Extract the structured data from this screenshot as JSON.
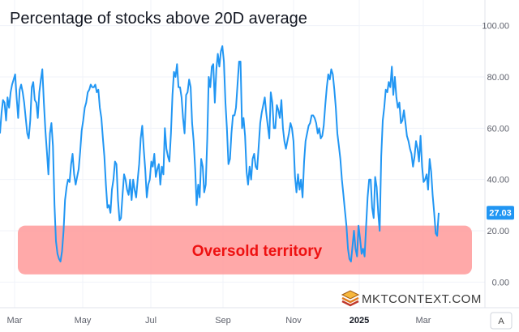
{
  "chart_data": {
    "type": "line",
    "title": "Percentage of stocks above 20D average",
    "ylim": [
      -10,
      110
    ],
    "y_ticks": [
      "100.00",
      "80.00",
      "60.00",
      "40.00",
      "20.00",
      "0.00"
    ],
    "x_tick_labels": [
      "Mar",
      "May",
      "Jul",
      "Sep",
      "Nov",
      "2025",
      "Mar"
    ],
    "last_value_label": "27.03",
    "band": {
      "from": 3,
      "to": 22,
      "label": "Oversold territory",
      "color": "#ff9a9a"
    },
    "series": [
      {
        "color": "#2196f3",
        "values": [
          58,
          66,
          71,
          70,
          63,
          72,
          68,
          74,
          77,
          79,
          81,
          72,
          64,
          75,
          77,
          74,
          70,
          64,
          58,
          56,
          63,
          76,
          78,
          71,
          70,
          64,
          74,
          79,
          83,
          70,
          59,
          51,
          42,
          58,
          62,
          53,
          30,
          16,
          11,
          9,
          8,
          12,
          20,
          32,
          37,
          40,
          39,
          46,
          50,
          42,
          38,
          41,
          44,
          51,
          59,
          63,
          68,
          70,
          74,
          75,
          77,
          76,
          76,
          77,
          74,
          75,
          68,
          64,
          56,
          49,
          38,
          29,
          30,
          27,
          36,
          40,
          47,
          46,
          32,
          24,
          25,
          34,
          42,
          40,
          36,
          34,
          40,
          32,
          40,
          36,
          33,
          40,
          46,
          56,
          61,
          52,
          44,
          33,
          38,
          40,
          47,
          45,
          50,
          41,
          44,
          46,
          38,
          45,
          42,
          60,
          52,
          49,
          47,
          58,
          73,
          82,
          80,
          85,
          76,
          76,
          72,
          64,
          58,
          73,
          74,
          79,
          76,
          62,
          55,
          44,
          30,
          38,
          33,
          48,
          45,
          35,
          38,
          56,
          80,
          76,
          84,
          85,
          70,
          83,
          89,
          84,
          90,
          92,
          86,
          70,
          60,
          46,
          48,
          58,
          65,
          65,
          68,
          77,
          86,
          86,
          60,
          64,
          57,
          43,
          38,
          45,
          40,
          48,
          50,
          45,
          44,
          53,
          62,
          66,
          69,
          72,
          66,
          61,
          56,
          74,
          70,
          60,
          60,
          69,
          67,
          64,
          71,
          60,
          55,
          52,
          55,
          58,
          62,
          60,
          55,
          41,
          35,
          42,
          36,
          40,
          33,
          47,
          55,
          58,
          61,
          62,
          65,
          65,
          64,
          62,
          58,
          60,
          56,
          57,
          61,
          69,
          76,
          81,
          79,
          83,
          81,
          75,
          68,
          58,
          53,
          48,
          40,
          34,
          28,
          22,
          13,
          9,
          8,
          14,
          20,
          13,
          10,
          22,
          17,
          11,
          13,
          10,
          22,
          33,
          40,
          40,
          29,
          25,
          41,
          37,
          27,
          20,
          49,
          63,
          68,
          75,
          74,
          78,
          76,
          84,
          73,
          80,
          72,
          68,
          70,
          62,
          63,
          67,
          62,
          57,
          55,
          52,
          50,
          45,
          49,
          55,
          52,
          47,
          57,
          45,
          39,
          40,
          42,
          36,
          48,
          43,
          34,
          27,
          19,
          18,
          27
        ]
      }
    ]
  },
  "watermark": {
    "text": "MKTCONTEXT.COM"
  },
  "scale_button": "A"
}
